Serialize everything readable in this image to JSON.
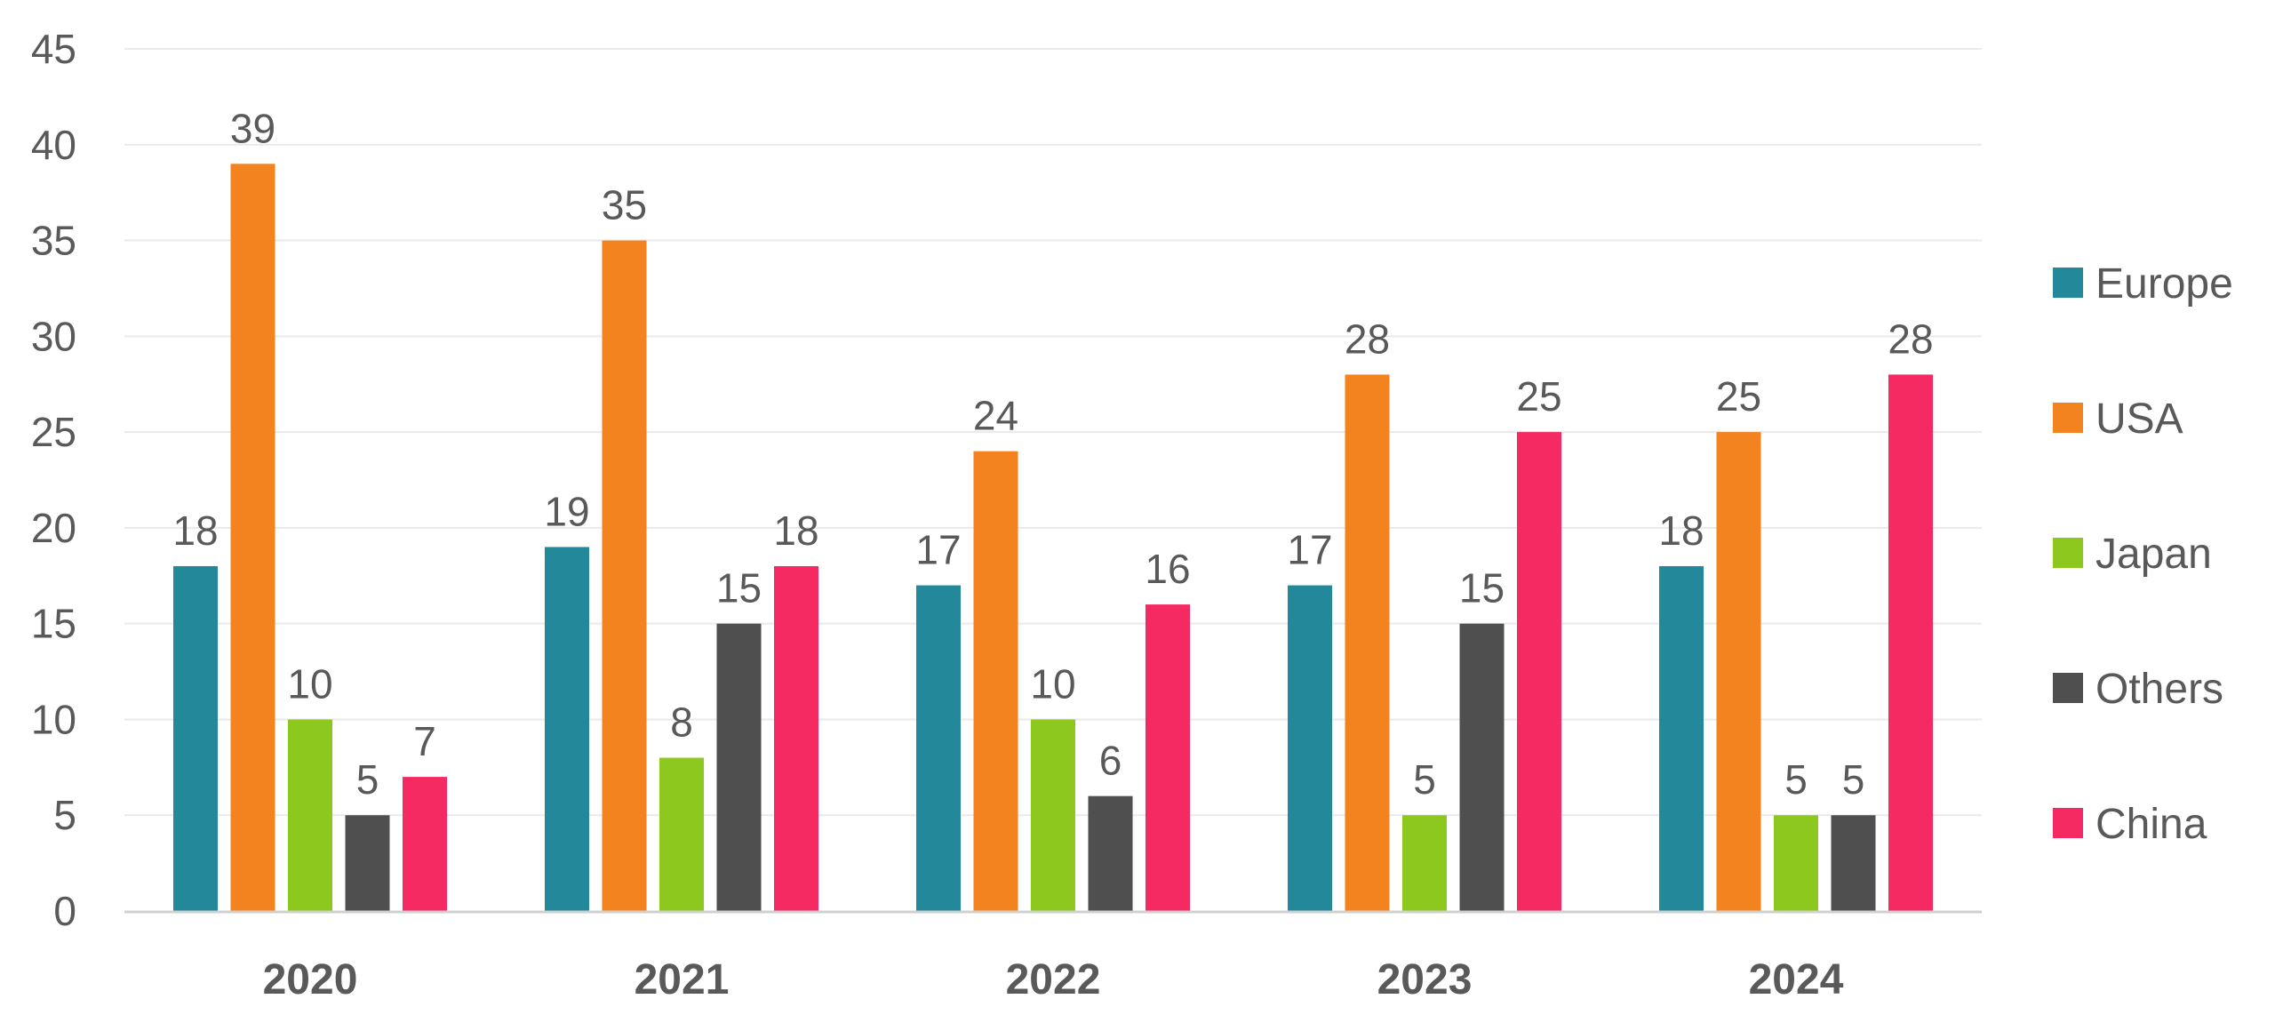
{
  "chart_data": {
    "type": "bar",
    "title": "",
    "xlabel": "",
    "ylabel": "",
    "categories": [
      "2020",
      "2021",
      "2022",
      "2023",
      "2024"
    ],
    "series": [
      {
        "name": "Europe",
        "color": "#23899A",
        "values": [
          18,
          19,
          17,
          17,
          18
        ]
      },
      {
        "name": "USA",
        "color": "#F2831E",
        "values": [
          39,
          35,
          24,
          28,
          25
        ]
      },
      {
        "name": "Japan",
        "color": "#8CC81E",
        "values": [
          10,
          8,
          10,
          5,
          5
        ]
      },
      {
        "name": "Others",
        "color": "#4F4F4F",
        "values": [
          5,
          15,
          6,
          15,
          5
        ]
      },
      {
        "name": "China",
        "color": "#F52A62",
        "values": [
          7,
          18,
          16,
          25,
          28
        ]
      }
    ],
    "ylim": [
      0,
      45
    ],
    "yticks": [
      "0",
      "5",
      "10",
      "15",
      "20",
      "25",
      "30",
      "35",
      "40",
      "45"
    ],
    "grid": true,
    "legend": "right",
    "data_labels": true
  }
}
